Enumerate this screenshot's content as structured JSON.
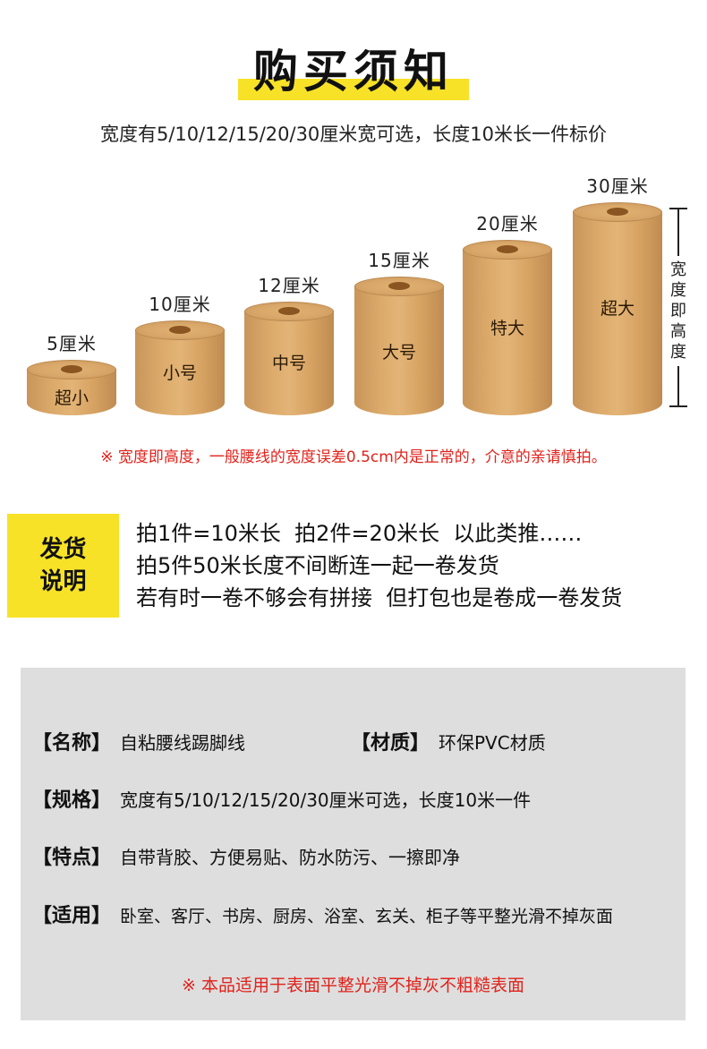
{
  "header": {
    "title": "购买须知",
    "subtitle": "宽度有5/10/12/15/20/30厘米宽可选，长度10米长一件标价"
  },
  "rolls": [
    {
      "size": "5厘米",
      "name": "超小"
    },
    {
      "size": "10厘米",
      "name": "小号"
    },
    {
      "size": "12厘米",
      "name": "中号"
    },
    {
      "size": "15厘米",
      "name": "大号"
    },
    {
      "size": "20厘米",
      "name": "特大"
    },
    {
      "size": "30厘米",
      "name": "超大"
    }
  ],
  "ruler_label": "宽度即高度",
  "width_note": "※ 宽度即高度，一般腰线的宽度误差0.5cm内是正常的，介意的亲请慎拍。",
  "shipping": {
    "badge": "发货\n说明",
    "lines": [
      "拍1件=10米长  拍2件=20米长  以此类推……",
      "拍5件50米长度不间断连一起一卷发货",
      "若有时一卷不够会有拼接  但打包也是卷成一卷发货"
    ]
  },
  "specs": {
    "name_key": "【名称】",
    "name_val": "自粘腰线踢脚线",
    "material_key": "【材质】",
    "material_val": "环保PVC材质",
    "spec_key": "【规格】",
    "spec_val": "宽度有5/10/12/15/20/30厘米可选，长度10米一件",
    "feature_key": "【特点】",
    "feature_val": "自带背胶、方便易贴、防水防污、一擦即净",
    "usage_key": "【适用】",
    "usage_val": "卧室、客厅、书房、厨房、浴室、玄关、柜子等平整光滑不掉灰面",
    "note": "※ 本品适用于表面平整光滑不掉灰不粗糙表面"
  },
  "colors": {
    "accent_yellow": "#f7e227",
    "warning_red": "#e0221b",
    "kraft": "#dcab6b",
    "panel_gray": "#dedede"
  }
}
